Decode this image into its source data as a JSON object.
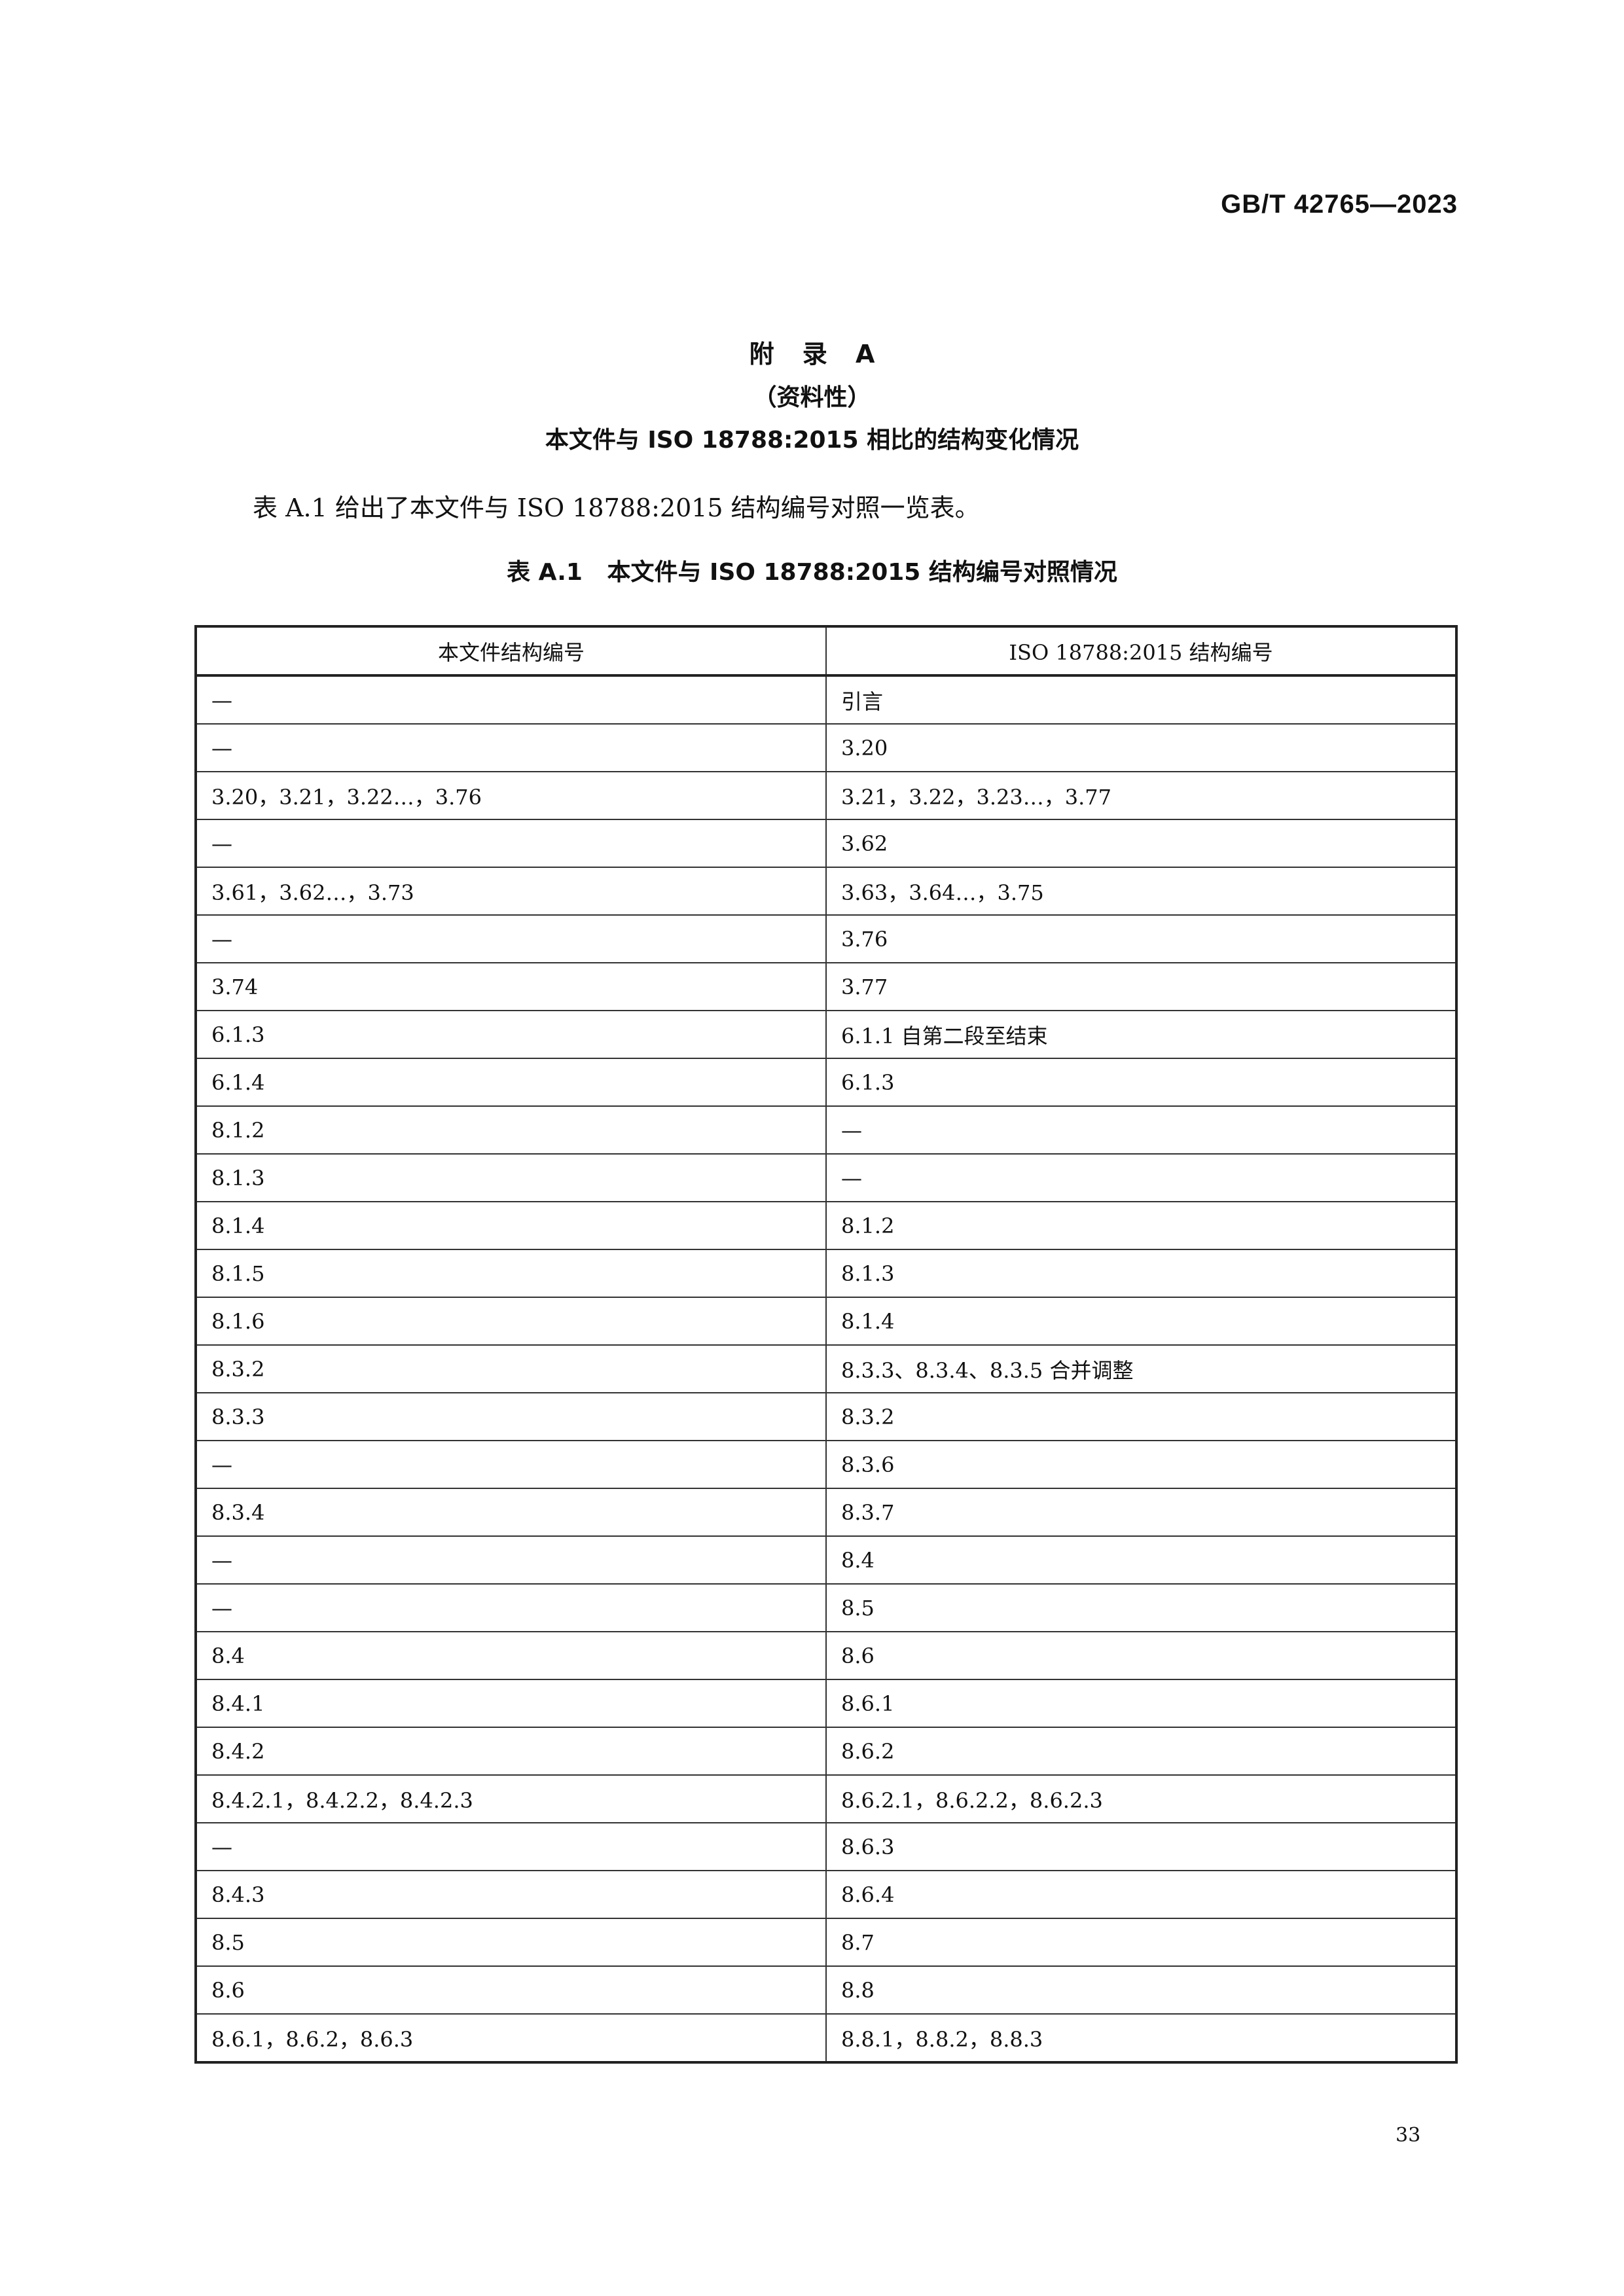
{
  "header": {
    "doc_code": "GB/T 42765—2023"
  },
  "appendix": {
    "title": "附 录 A",
    "type": "（资料性）",
    "subtitle": "本文件与 ISO 18788:2015 相比的结构变化情况"
  },
  "intro": "表 A.1 给出了本文件与 ISO 18788:2015 结构编号对照一览表。",
  "table": {
    "caption": "表 A.1   本文件与 ISO 18788:2015 结构编号对照情况",
    "headers": [
      "本文件结构编号",
      "ISO 18788:2015 结构编号"
    ],
    "rows": [
      [
        "—",
        "引言"
      ],
      [
        "—",
        "3.20"
      ],
      [
        "3.20，3.21，3.22…，3.76",
        "3.21，3.22，3.23…，3.77"
      ],
      [
        "—",
        "3.62"
      ],
      [
        "3.61，3.62…，3.73",
        "3.63，3.64…，3.75"
      ],
      [
        "—",
        "3.76"
      ],
      [
        "3.74",
        "3.77"
      ],
      [
        "6.1.3",
        "6.1.1 自第二段至结束"
      ],
      [
        "6.1.4",
        "6.1.3"
      ],
      [
        "8.1.2",
        "—"
      ],
      [
        "8.1.3",
        "—"
      ],
      [
        "8.1.4",
        "8.1.2"
      ],
      [
        "8.1.5",
        "8.1.3"
      ],
      [
        "8.1.6",
        "8.1.4"
      ],
      [
        "8.3.2",
        "8.3.3、8.3.4、8.3.5 合并调整"
      ],
      [
        "8.3.3",
        "8.3.2"
      ],
      [
        "—",
        "8.3.6"
      ],
      [
        "8.3.4",
        "8.3.7"
      ],
      [
        "—",
        "8.4"
      ],
      [
        "—",
        "8.5"
      ],
      [
        "8.4",
        "8.6"
      ],
      [
        "8.4.1",
        "8.6.1"
      ],
      [
        "8.4.2",
        "8.6.2"
      ],
      [
        "8.4.2.1，8.4.2.2，8.4.2.3",
        "8.6.2.1，8.6.2.2，8.6.2.3"
      ],
      [
        "—",
        "8.6.3"
      ],
      [
        "8.4.3",
        "8.6.4"
      ],
      [
        "8.5",
        "8.7"
      ],
      [
        "8.6",
        "8.8"
      ],
      [
        "8.6.1，8.6.2，8.6.3",
        "8.8.1，8.8.2，8.8.3"
      ]
    ]
  },
  "footer": {
    "page_number": "33"
  }
}
